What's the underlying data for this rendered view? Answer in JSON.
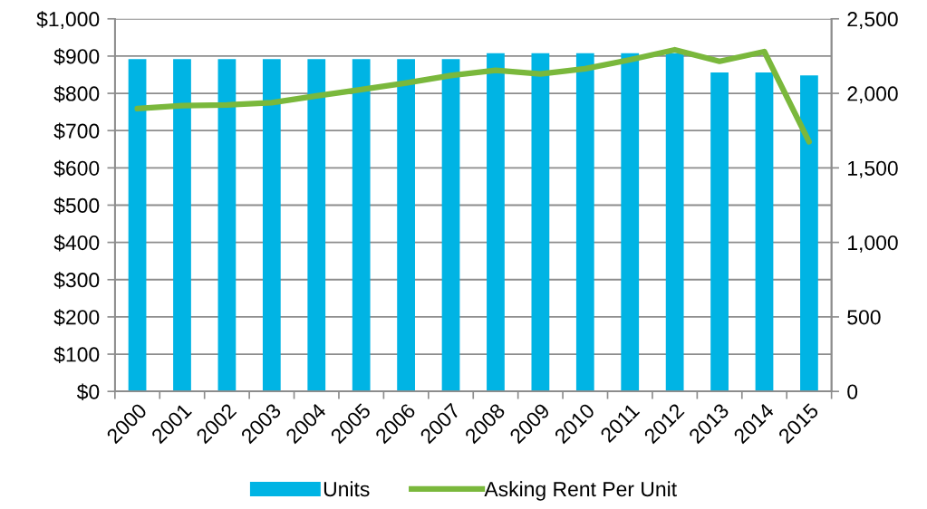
{
  "chart_data": {
    "type": "bar",
    "categories": [
      "2000",
      "2001",
      "2002",
      "2003",
      "2004",
      "2005",
      "2006",
      "2007",
      "2008",
      "2009",
      "2010",
      "2011",
      "2012",
      "2013",
      "2014",
      "2015"
    ],
    "series": [
      {
        "name": "Units",
        "axis": "y2",
        "color": "#00b4e4",
        "values": [
          2230,
          2230,
          2230,
          2230,
          2230,
          2230,
          2230,
          2230,
          2270,
          2270,
          2270,
          2270,
          2270,
          2140,
          2140,
          2120
        ]
      },
      {
        "name": "Asking Rent Per Unit",
        "type": "line",
        "color": "#7ab83c",
        "values": [
          759,
          767,
          769,
          775,
          793,
          810,
          828,
          848,
          862,
          852,
          866,
          890,
          917,
          886,
          912,
          670
        ]
      }
    ],
    "ylim": [
      0,
      1000
    ],
    "yticks": [
      {
        "value": 0,
        "label": "$0"
      },
      {
        "value": 100,
        "label": "$100"
      },
      {
        "value": 200,
        "label": "$200"
      },
      {
        "value": 300,
        "label": "$300"
      },
      {
        "value": 400,
        "label": "$400"
      },
      {
        "value": 500,
        "label": "$500"
      },
      {
        "value": 600,
        "label": "$600"
      },
      {
        "value": 700,
        "label": "$700"
      },
      {
        "value": 800,
        "label": "$800"
      },
      {
        "value": 900,
        "label": "$900"
      },
      {
        "value": 1000,
        "label": "$1,000"
      }
    ],
    "y2lim": [
      0,
      2500
    ],
    "y2ticks": [
      0,
      500,
      {
        "value": 1000,
        "label": "1,000"
      },
      {
        "value": 1500,
        "label": "1,500"
      },
      {
        "value": 2000,
        "label": "2,000"
      },
      {
        "value": 2500,
        "label": "2,500"
      }
    ],
    "grid": "y",
    "legend": "bottom"
  }
}
